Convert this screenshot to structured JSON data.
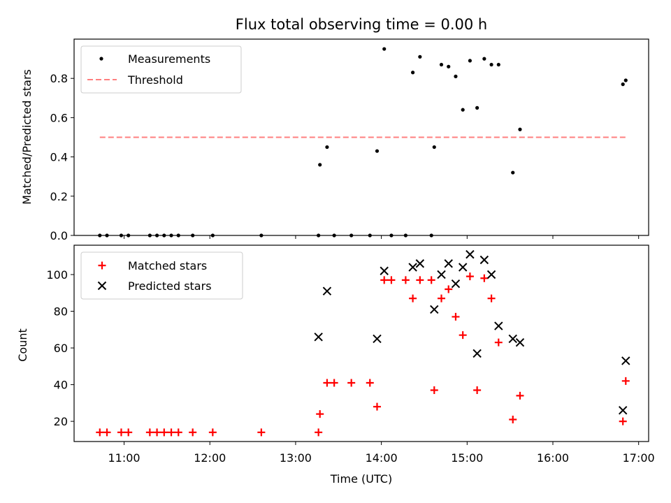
{
  "chart_data": [
    {
      "type": "scatter",
      "title": "Flux total observing time = 0.00 h",
      "xlabel": "",
      "ylabel": "Matched/Predicted stars",
      "ylim": [
        0,
        1.0
      ],
      "yticks": [
        "0.0",
        "0.2",
        "0.4",
        "0.6",
        "0.8"
      ],
      "legend_position": "top-left",
      "series": [
        {
          "name": "Measurements",
          "marker": "dot",
          "color": "#000000",
          "points": [
            [
              "10:43",
              0
            ],
            [
              "10:48",
              0
            ],
            [
              "10:58",
              0
            ],
            [
              "11:03",
              0
            ],
            [
              "11:18",
              0
            ],
            [
              "11:23",
              0
            ],
            [
              "11:28",
              0
            ],
            [
              "11:33",
              0
            ],
            [
              "11:38",
              0
            ],
            [
              "11:48",
              0
            ],
            [
              "12:02",
              0
            ],
            [
              "12:36",
              0
            ],
            [
              "13:16",
              0.0
            ],
            [
              "13:17",
              0.36
            ],
            [
              "13:22",
              0.45
            ],
            [
              "13:27",
              0
            ],
            [
              "13:39",
              0
            ],
            [
              "13:52",
              0
            ],
            [
              "13:57",
              0.43
            ],
            [
              "14:02",
              0.95
            ],
            [
              "14:07",
              0
            ],
            [
              "14:17",
              0
            ],
            [
              "14:22",
              0.83
            ],
            [
              "14:27",
              0.91
            ],
            [
              "14:35",
              0
            ],
            [
              "14:37",
              0.45
            ],
            [
              "14:42",
              0.87
            ],
            [
              "14:47",
              0.86
            ],
            [
              "14:52",
              0.81
            ],
            [
              "14:57",
              0.64
            ],
            [
              "15:02",
              0.89
            ],
            [
              "15:07",
              0.65
            ],
            [
              "15:12",
              0.9
            ],
            [
              "15:17",
              0.87
            ],
            [
              "15:22",
              0.87
            ],
            [
              "15:32",
              0.32
            ],
            [
              "15:37",
              0.54
            ],
            [
              "16:49",
              0.77
            ],
            [
              "16:51",
              0.79
            ]
          ]
        },
        {
          "name": "Threshold",
          "marker": "dashed-line",
          "color": "#ff7f7f",
          "points": [
            [
              "10:43",
              0.5
            ],
            [
              "16:51",
              0.5
            ]
          ]
        }
      ]
    },
    {
      "type": "scatter",
      "title": "",
      "xlabel": "Time (UTC)",
      "ylabel": "Count",
      "xlim": [
        "10:25",
        "17:07"
      ],
      "ylim": [
        9,
        116
      ],
      "xticks": [
        "11:00",
        "12:00",
        "13:00",
        "14:00",
        "15:00",
        "16:00",
        "17:00"
      ],
      "yticks": [
        "20",
        "40",
        "60",
        "80",
        "100"
      ],
      "legend_position": "top-left",
      "series": [
        {
          "name": "Matched stars",
          "marker": "plus",
          "color": "#ff0000",
          "points": [
            [
              "10:43",
              14
            ],
            [
              "10:48",
              14
            ],
            [
              "10:58",
              14
            ],
            [
              "11:03",
              14
            ],
            [
              "11:18",
              14
            ],
            [
              "11:23",
              14
            ],
            [
              "11:28",
              14
            ],
            [
              "11:33",
              14
            ],
            [
              "11:38",
              14
            ],
            [
              "11:48",
              14
            ],
            [
              "12:02",
              14
            ],
            [
              "12:36",
              14
            ],
            [
              "13:16",
              14
            ],
            [
              "13:17",
              24
            ],
            [
              "13:22",
              41
            ],
            [
              "13:27",
              41
            ],
            [
              "13:39",
              41
            ],
            [
              "13:52",
              41
            ],
            [
              "13:57",
              28
            ],
            [
              "14:02",
              97
            ],
            [
              "14:07",
              97
            ],
            [
              "14:17",
              97
            ],
            [
              "14:22",
              87
            ],
            [
              "14:27",
              97
            ],
            [
              "14:35",
              97
            ],
            [
              "14:37",
              37
            ],
            [
              "14:42",
              87
            ],
            [
              "14:47",
              92
            ],
            [
              "14:52",
              77
            ],
            [
              "14:57",
              67
            ],
            [
              "15:02",
              99
            ],
            [
              "15:07",
              37
            ],
            [
              "15:12",
              98
            ],
            [
              "15:17",
              87
            ],
            [
              "15:22",
              63
            ],
            [
              "15:32",
              21
            ],
            [
              "15:37",
              34
            ],
            [
              "16:49",
              20
            ],
            [
              "16:51",
              42
            ]
          ]
        },
        {
          "name": "Predicted stars",
          "marker": "x",
          "color": "#000000",
          "points": [
            [
              "13:16",
              66
            ],
            [
              "13:22",
              91
            ],
            [
              "13:57",
              65
            ],
            [
              "14:02",
              102
            ],
            [
              "14:22",
              104
            ],
            [
              "14:27",
              106
            ],
            [
              "14:37",
              81
            ],
            [
              "14:42",
              100
            ],
            [
              "14:47",
              106
            ],
            [
              "14:52",
              95
            ],
            [
              "14:57",
              104
            ],
            [
              "15:02",
              111
            ],
            [
              "15:07",
              57
            ],
            [
              "15:12",
              108
            ],
            [
              "15:17",
              100
            ],
            [
              "15:22",
              72
            ],
            [
              "15:32",
              65
            ],
            [
              "15:37",
              63
            ],
            [
              "16:49",
              26
            ],
            [
              "16:51",
              53
            ]
          ]
        }
      ]
    }
  ]
}
